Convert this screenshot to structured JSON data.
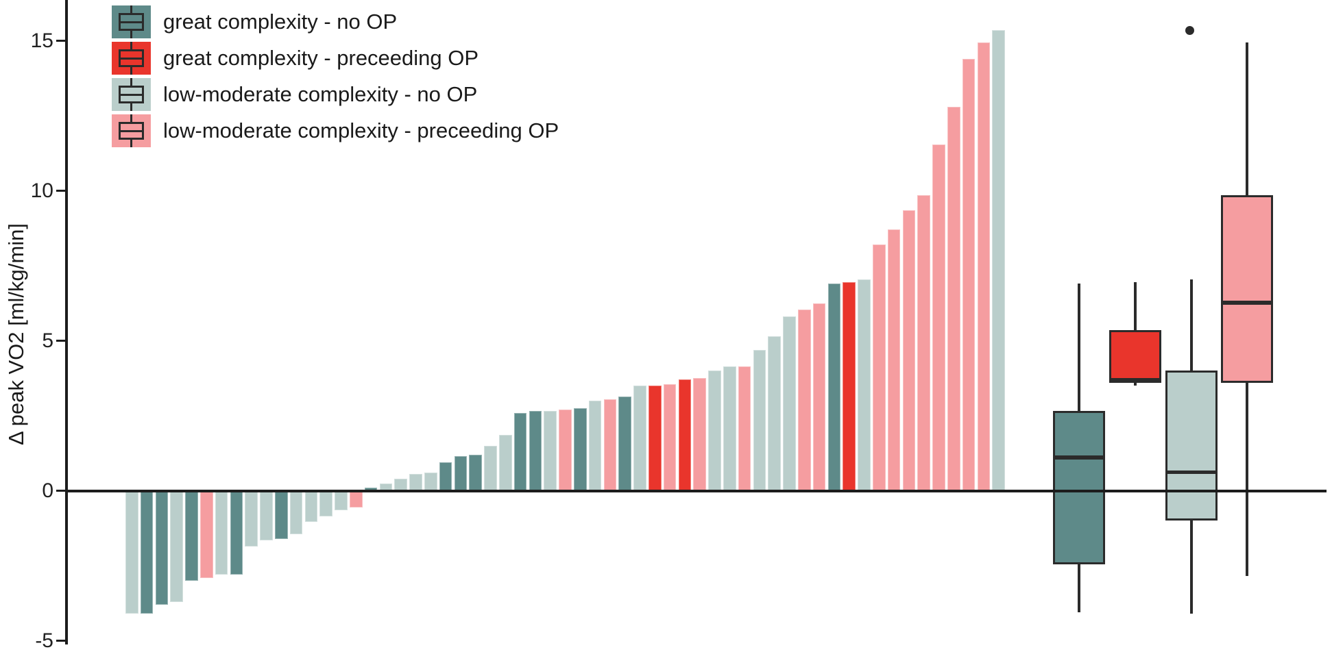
{
  "figure": {
    "ylabel": "Δ peak VO2 [ml/kg/min]",
    "background": "#ffffff"
  },
  "axis": {
    "yticks": [
      15,
      10,
      5,
      0,
      -5
    ],
    "ylim": [
      -5.4,
      16.4
    ],
    "grid": false,
    "color": "#1c1c1c"
  },
  "colors": {
    "gc_noop": "#5e8a89",
    "gc_op": "#e9352c",
    "lm_noop": "#bacecb",
    "lm_op": "#f59da0",
    "stroke": "#2b2b2b",
    "outlier": "#2b2b2b"
  },
  "legend": {
    "items": [
      {
        "key": "gc_noop",
        "label": "great complexity - no OP"
      },
      {
        "key": "gc_op",
        "label": "great complexity - preceeding OP"
      },
      {
        "key": "lm_noop",
        "label": "low-moderate complexity - no OP"
      },
      {
        "key": "lm_op",
        "label": "low-moderate complexity - preceeding OP"
      }
    ]
  },
  "chart_data": [
    {
      "type": "bar",
      "title": "",
      "xlabel": "",
      "ylabel": "Δ peak VO2 [ml/kg/min]",
      "ylim": [
        -5.4,
        16.4
      ],
      "grid": false,
      "note": "per-patient change in peak VO2, sorted ascending (waterfall)",
      "bars": [
        {
          "group": "lm_noop",
          "value": -4.1
        },
        {
          "group": "gc_noop",
          "value": -4.1
        },
        {
          "group": "gc_noop",
          "value": -3.8
        },
        {
          "group": "lm_noop",
          "value": -3.7
        },
        {
          "group": "gc_noop",
          "value": -3.0
        },
        {
          "group": "lm_op",
          "value": -2.9
        },
        {
          "group": "lm_noop",
          "value": -2.8
        },
        {
          "group": "gc_noop",
          "value": -2.8
        },
        {
          "group": "lm_noop",
          "value": -1.85
        },
        {
          "group": "lm_noop",
          "value": -1.65
        },
        {
          "group": "gc_noop",
          "value": -1.6
        },
        {
          "group": "lm_noop",
          "value": -1.45
        },
        {
          "group": "lm_noop",
          "value": -1.05
        },
        {
          "group": "lm_noop",
          "value": -0.85
        },
        {
          "group": "lm_noop",
          "value": -0.65
        },
        {
          "group": "lm_op",
          "value": -0.55
        },
        {
          "group": "gc_noop",
          "value": 0.1
        },
        {
          "group": "lm_noop",
          "value": 0.25
        },
        {
          "group": "lm_noop",
          "value": 0.4
        },
        {
          "group": "lm_noop",
          "value": 0.55
        },
        {
          "group": "lm_noop",
          "value": 0.6
        },
        {
          "group": "gc_noop",
          "value": 0.95
        },
        {
          "group": "gc_noop",
          "value": 1.15
        },
        {
          "group": "gc_noop",
          "value": 1.2
        },
        {
          "group": "lm_noop",
          "value": 1.5
        },
        {
          "group": "lm_noop",
          "value": 1.85
        },
        {
          "group": "gc_noop",
          "value": 2.6
        },
        {
          "group": "gc_noop",
          "value": 2.65
        },
        {
          "group": "lm_noop",
          "value": 2.65
        },
        {
          "group": "lm_op",
          "value": 2.7
        },
        {
          "group": "gc_noop",
          "value": 2.75
        },
        {
          "group": "lm_noop",
          "value": 3.0
        },
        {
          "group": "lm_op",
          "value": 3.05
        },
        {
          "group": "gc_noop",
          "value": 3.15
        },
        {
          "group": "lm_noop",
          "value": 3.5
        },
        {
          "group": "gc_op",
          "value": 3.5
        },
        {
          "group": "lm_op",
          "value": 3.55
        },
        {
          "group": "gc_op",
          "value": 3.7
        },
        {
          "group": "lm_op",
          "value": 3.75
        },
        {
          "group": "lm_noop",
          "value": 4.0
        },
        {
          "group": "lm_noop",
          "value": 4.15
        },
        {
          "group": "lm_op",
          "value": 4.15
        },
        {
          "group": "lm_noop",
          "value": 4.7
        },
        {
          "group": "lm_noop",
          "value": 5.15
        },
        {
          "group": "lm_noop",
          "value": 5.8
        },
        {
          "group": "lm_op",
          "value": 6.05
        },
        {
          "group": "lm_op",
          "value": 6.25
        },
        {
          "group": "gc_noop",
          "value": 6.9
        },
        {
          "group": "gc_op",
          "value": 6.95
        },
        {
          "group": "lm_noop",
          "value": 7.05
        },
        {
          "group": "lm_op",
          "value": 8.2
        },
        {
          "group": "lm_op",
          "value": 8.7
        },
        {
          "group": "lm_op",
          "value": 9.35
        },
        {
          "group": "lm_op",
          "value": 9.85
        },
        {
          "group": "lm_op",
          "value": 11.55
        },
        {
          "group": "lm_op",
          "value": 12.8
        },
        {
          "group": "lm_op",
          "value": 14.4
        },
        {
          "group": "lm_op",
          "value": 14.95
        },
        {
          "group": "lm_noop",
          "value": 15.35
        }
      ]
    },
    {
      "type": "box",
      "ylabel": "Δ peak VO2 [ml/kg/min]",
      "ylim": [
        -5.4,
        16.4
      ],
      "groups": [
        {
          "key": "gc_noop",
          "label": "great complexity - no OP",
          "whisker_low": -4.05,
          "q1": -2.45,
          "median": 1.1,
          "q3": 2.65,
          "whisker_high": 6.9,
          "outliers": []
        },
        {
          "key": "gc_op",
          "label": "great complexity - preceeding OP",
          "whisker_low": 3.5,
          "q1": 3.6,
          "median": 3.68,
          "q3": 5.35,
          "whisker_high": 6.95,
          "outliers": []
        },
        {
          "key": "lm_noop",
          "label": "low-moderate complexity - no OP",
          "whisker_low": -4.1,
          "q1": -1.0,
          "median": 0.6,
          "q3": 4.0,
          "whisker_high": 7.05,
          "outliers": [
            15.35
          ]
        },
        {
          "key": "lm_op",
          "label": "low-moderate complexity - preceeding OP",
          "whisker_low": -2.85,
          "q1": 3.6,
          "median": 6.25,
          "q3": 9.85,
          "whisker_high": 14.95,
          "outliers": []
        }
      ]
    }
  ]
}
